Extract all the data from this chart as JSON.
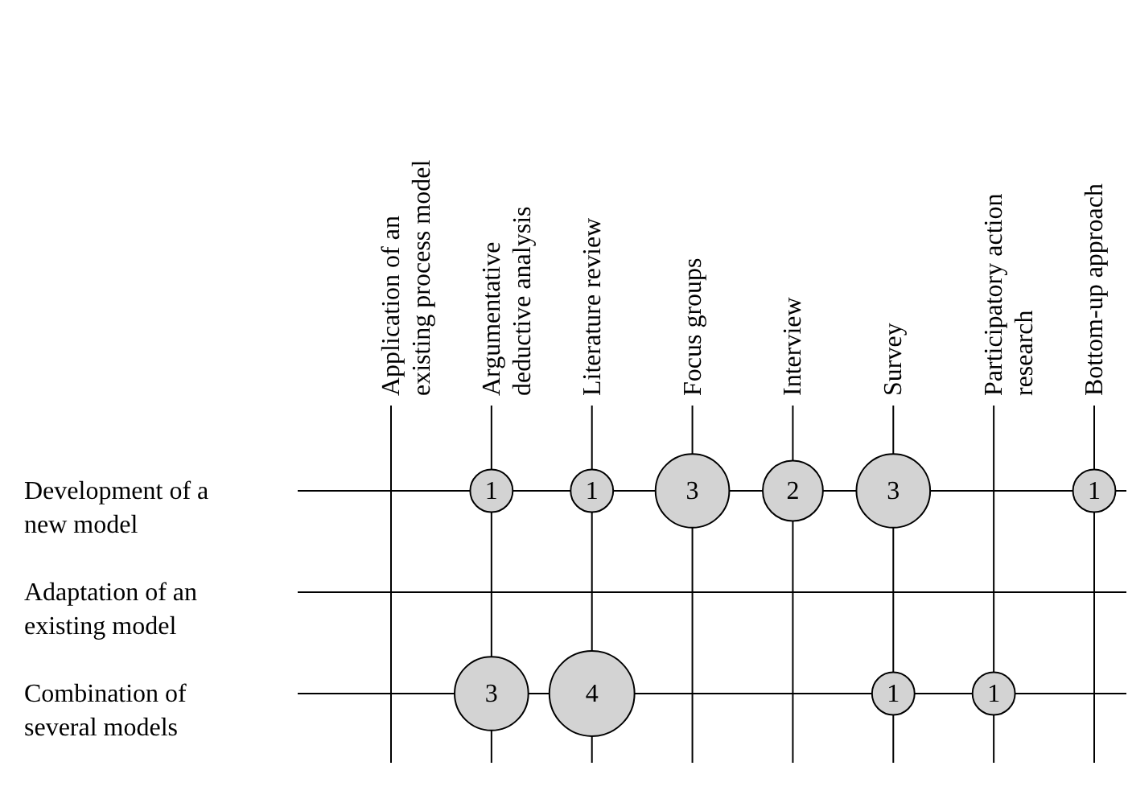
{
  "chart_data": {
    "type": "heatmap",
    "categories": [
      "Application of an existing process model",
      "Argumentative deductive analysis",
      "Literature review",
      "Focus groups",
      "Interview",
      "Survey",
      "Participatory action research",
      "Bottom-up approach"
    ],
    "y_categories": [
      "Development of a new model",
      "Adaptation of an existing model",
      "Combination of several models"
    ],
    "cells": [
      [
        null,
        1,
        1,
        3,
        2,
        3,
        null,
        1
      ],
      [
        null,
        null,
        null,
        null,
        null,
        null,
        null,
        null
      ],
      [
        null,
        3,
        4,
        null,
        null,
        1,
        1,
        null
      ]
    ],
    "colors": [
      "#d3d3d3"
    ],
    "data_labels": true,
    "grid": true
  }
}
